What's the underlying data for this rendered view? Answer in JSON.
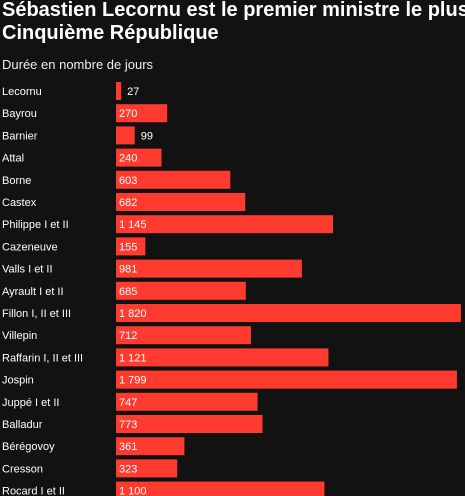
{
  "title_line1": "Sébastien Lecornu est le premier ministre le plus éphémère de la",
  "title_line2": "Cinquième République",
  "subtitle": "Durée en nombre de jours",
  "colors": {
    "bar": "#ff3b30",
    "background": "#121212",
    "text": "#ffffff"
  },
  "chart_data": {
    "type": "bar",
    "orientation": "horizontal",
    "categories": [
      "Lecornu",
      "Bayrou",
      "Barnier",
      "Attal",
      "Borne",
      "Castex",
      "Philippe I et II",
      "Cazeneuve",
      "Valls I et II",
      "Ayrault I et II",
      "Fillon I, II et III",
      "Villepin",
      "Raffarin I, II et III",
      "Jospin",
      "Juppé I et II",
      "Balladur",
      "Bérégovoy",
      "Cresson",
      "Rocard I et II"
    ],
    "values": [
      27,
      270,
      99,
      240,
      603,
      682,
      1145,
      155,
      981,
      685,
      1820,
      712,
      1121,
      1799,
      747,
      773,
      361,
      323,
      1100
    ],
    "value_labels": [
      "27",
      "270",
      "99",
      "240",
      "603",
      "682",
      "1 145",
      "155",
      "981",
      "685",
      "1 820",
      "712",
      "1 121",
      "1 799",
      "747",
      "773",
      "361",
      "323",
      "1 100"
    ],
    "title": "Sébastien Lecornu est le premier ministre le plus éphémère de la Cinquième République",
    "subtitle": "Durée en nombre de jours",
    "xlabel": "",
    "ylabel": "",
    "grid": false,
    "legend": "none"
  }
}
